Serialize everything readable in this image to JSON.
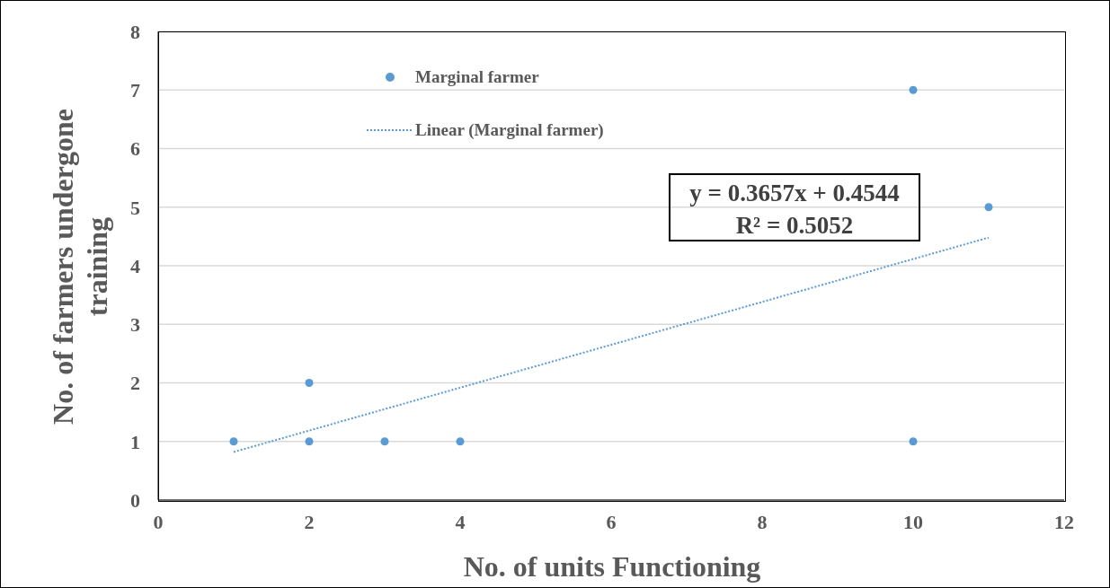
{
  "chart_data": {
    "type": "scatter",
    "xlabel": "No. of units Functioning",
    "ylabel": "No. of  farmers undergone training",
    "xlim": [
      0,
      12
    ],
    "xticks": [
      0,
      2,
      4,
      6,
      8,
      10,
      12
    ],
    "ylim": [
      0,
      8
    ],
    "yticks": [
      0,
      1,
      2,
      3,
      4,
      5,
      6,
      7,
      8
    ],
    "grid": "y",
    "legend": "top left",
    "marker": "circle",
    "annotations": [
      "y = 0.3657x + 0.4544",
      "R² = 0.5052"
    ],
    "series": [
      {
        "name": "Marginal farmer",
        "color": "#5b9bd5",
        "x": [
          1,
          2,
          2,
          3,
          4,
          10,
          10,
          11
        ],
        "values": [
          1,
          2,
          1,
          1,
          1,
          7,
          1,
          5
        ]
      },
      {
        "name": "Linear (Marginal farmer)",
        "type": "line",
        "line_style": "dotted",
        "marker": "none",
        "color": "#5b9bd5",
        "x": [
          1,
          11
        ],
        "values": [
          0.82,
          4.48
        ]
      }
    ]
  }
}
